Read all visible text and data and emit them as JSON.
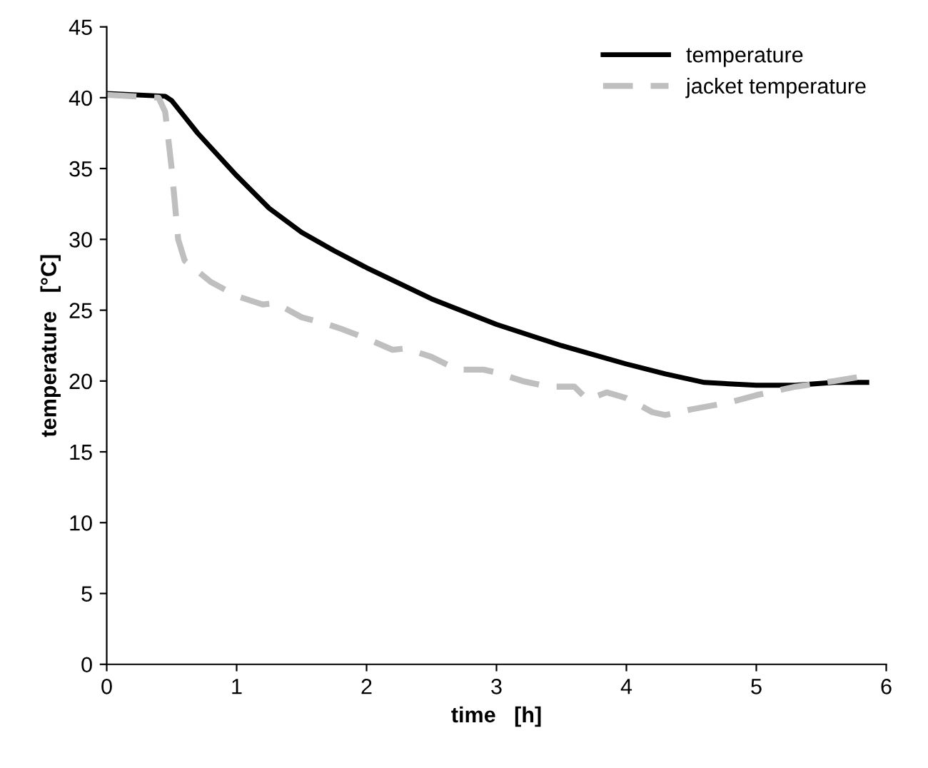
{
  "chart_data": {
    "type": "line",
    "xlabel": "time   [h]",
    "ylabel": "temperature   [°C]",
    "xlim": [
      0,
      6
    ],
    "xticks": [
      0,
      1,
      2,
      3,
      4,
      5,
      6
    ],
    "ylim": [
      0,
      45
    ],
    "yticks": [
      0,
      5,
      10,
      15,
      20,
      25,
      30,
      35,
      40,
      45
    ],
    "grid": false,
    "legend": "top right",
    "marker": "none",
    "series": [
      {
        "name": "temperature",
        "color": "#000000",
        "line_style": "solid",
        "x": [
          0,
          0.45,
          0.5,
          0.7,
          1,
          1.25,
          1.5,
          1.75,
          2,
          2.5,
          3,
          3.5,
          4,
          4.3,
          4.6,
          5,
          5.3,
          5.6,
          5.85
        ],
        "values": [
          40.3,
          40.1,
          39.8,
          37.5,
          34.5,
          32.2,
          30.5,
          29.2,
          28,
          25.8,
          24,
          22.5,
          21.2,
          20.5,
          19.9,
          19.7,
          19.7,
          19.9,
          19.9
        ]
      },
      {
        "name": "jacket temperature",
        "color": "#bfbfbf",
        "line_style": "dashed",
        "x": [
          0,
          0.4,
          0.45,
          0.5,
          0.55,
          0.6,
          0.8,
          1,
          1.2,
          1.3,
          1.5,
          1.7,
          1.8,
          2,
          2.2,
          2.3,
          2.5,
          2.7,
          2.9,
          3,
          3.2,
          3.4,
          3.6,
          3.7,
          3.85,
          4,
          4.2,
          4.3,
          4.5,
          4.8,
          5,
          5.3,
          5.6,
          5.8,
          5.85
        ],
        "values": [
          40.2,
          40,
          39,
          35,
          30,
          28.5,
          27,
          26,
          25.4,
          25.5,
          24.5,
          24,
          23.7,
          23,
          22.2,
          22.3,
          21.7,
          20.8,
          20.8,
          20.6,
          20,
          19.6,
          19.6,
          18.7,
          19.2,
          18.8,
          17.8,
          17.6,
          18,
          18.5,
          19,
          19.6,
          20,
          20.3,
          20.2
        ]
      }
    ]
  }
}
